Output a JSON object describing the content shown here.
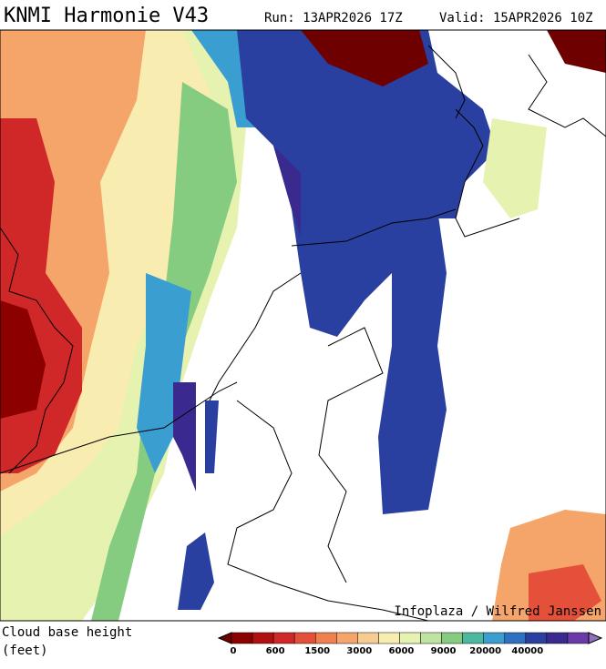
{
  "header": {
    "title": "KNMI Harmonie V43",
    "run": "Run: 13APR2026 17Z",
    "valid": "Valid: 15APR2026 10Z"
  },
  "credit": "Infoplaza / Wilfred Janssen",
  "legend": {
    "title": "Cloud base height",
    "unit": "(feet)",
    "colors": [
      "#6e0000",
      "#8c0000",
      "#b01010",
      "#d02828",
      "#e5503a",
      "#f08050",
      "#f5a56a",
      "#f8cc90",
      "#f8ecb0",
      "#e6f2b0",
      "#bfe3a0",
      "#86cc80",
      "#4cb8a0",
      "#3a9ed0",
      "#3070c0",
      "#2a40a0",
      "#3a2a90",
      "#6a3aa8",
      "#9070c0"
    ],
    "labels": [
      0,
      600,
      1500,
      3000,
      6000,
      9000,
      20000,
      40000
    ]
  }
}
